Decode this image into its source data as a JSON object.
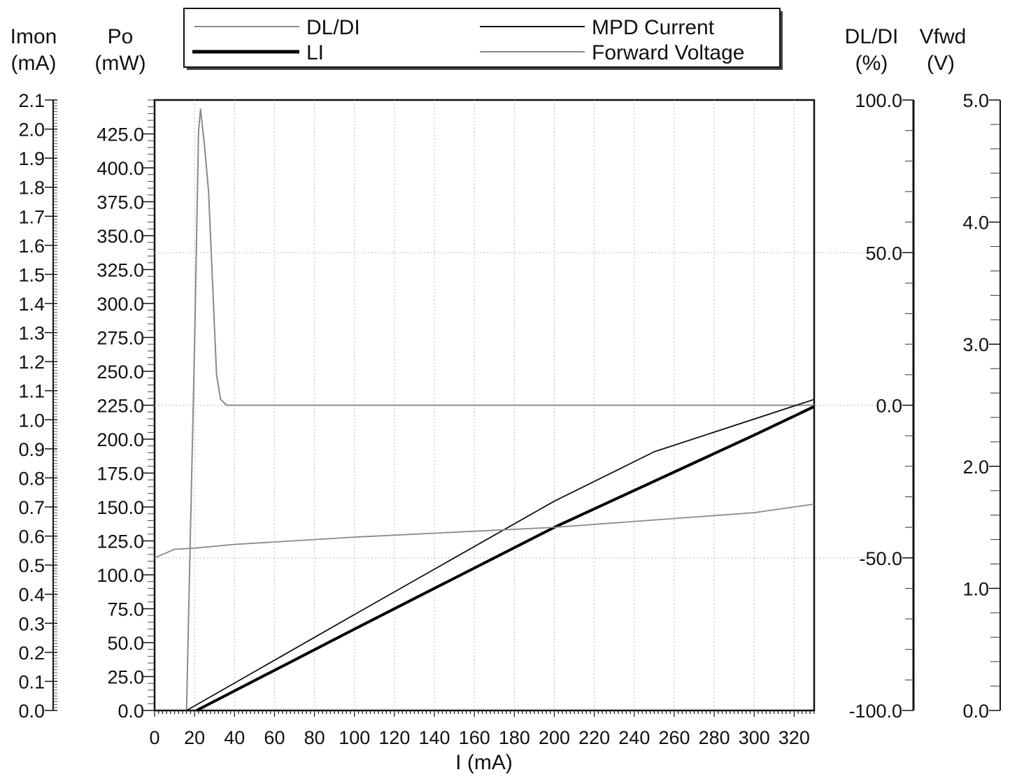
{
  "chart_data": {
    "type": "line",
    "x": {
      "label": "I (mA)",
      "range": [
        0,
        330
      ],
      "ticks": [
        0,
        20,
        40,
        60,
        80,
        100,
        120,
        140,
        160,
        180,
        200,
        220,
        240,
        260,
        280,
        300,
        320
      ],
      "tick_labels": [
        "0",
        "20",
        "40",
        "60",
        "80",
        "100",
        "120",
        "140",
        "160",
        "180",
        "200",
        "220",
        "240",
        "260",
        "280",
        "300",
        "320"
      ]
    },
    "axes": {
      "imon": {
        "title_line1": "Imon",
        "title_line2": "(mA)",
        "range": [
          0,
          2.1
        ],
        "ticks": [
          0,
          0.1,
          0.2,
          0.3,
          0.4,
          0.5,
          0.6,
          0.7,
          0.8,
          0.9,
          1.0,
          1.1,
          1.2,
          1.3,
          1.4,
          1.5,
          1.6,
          1.7,
          1.8,
          1.9,
          2.0,
          2.1
        ],
        "tick_labels": [
          "0.0",
          "0.1",
          "0.2",
          "0.3",
          "0.4",
          "0.5",
          "0.6",
          "0.7",
          "0.8",
          "0.9",
          "1.0",
          "1.1",
          "1.2",
          "1.3",
          "1.4",
          "1.5",
          "1.6",
          "1.7",
          "1.8",
          "1.9",
          "2.0",
          "2.1"
        ]
      },
      "po": {
        "title_line1": "Po",
        "title_line2": "(mW)",
        "range": [
          0,
          450
        ],
        "ticks": [
          0,
          25,
          50,
          75,
          100,
          125,
          150,
          175,
          200,
          225,
          250,
          275,
          300,
          325,
          350,
          375,
          400,
          425
        ],
        "tick_labels": [
          "0.0",
          "25.0",
          "50.0",
          "75.0",
          "100.0",
          "125.0",
          "150.0",
          "175.0",
          "200.0",
          "225.0",
          "250.0",
          "275.0",
          "300.0",
          "325.0",
          "350.0",
          "375.0",
          "400.0",
          "425.0"
        ]
      },
      "dldi": {
        "title_line1": "DL/DI",
        "title_line2": "(%)",
        "range": [
          -100,
          100
        ],
        "ticks": [
          -100,
          -50,
          0,
          50,
          100
        ],
        "tick_labels": [
          "-100.0",
          "-50.0",
          "0.0",
          "50.0",
          "100.0"
        ]
      },
      "vfwd": {
        "title_line1": "Vfwd",
        "title_line2": "(V)",
        "range": [
          0,
          5
        ],
        "ticks": [
          0,
          1,
          2,
          3,
          4,
          5
        ],
        "tick_labels": [
          "0.0",
          "1.0",
          "2.0",
          "3.0",
          "4.0",
          "5.0"
        ]
      }
    },
    "legend": [
      {
        "name": "DL/DI",
        "style": "gray-thin"
      },
      {
        "name": "MPD Current",
        "style": "black-thin"
      },
      {
        "name": "LI",
        "style": "black-thick"
      },
      {
        "name": "Forward Voltage",
        "style": "gray-thin"
      }
    ],
    "series": [
      {
        "name": "DL/DI",
        "axis": "dldi",
        "color": "#8a8a8a",
        "x": [
          16,
          18,
          20,
          22,
          23,
          25,
          27,
          29,
          31,
          33,
          36,
          40,
          60,
          100,
          140,
          180,
          220,
          260,
          300,
          330
        ],
        "y": [
          -100,
          -40,
          20,
          90,
          97,
          85,
          70,
          40,
          10,
          2,
          0,
          0,
          0,
          0,
          0,
          0,
          0,
          0,
          0,
          0
        ]
      },
      {
        "name": "MPD Current",
        "axis": "imon",
        "color": "#111111",
        "x": [
          16,
          100,
          200,
          250,
          330
        ],
        "y": [
          0.0,
          0.33,
          0.72,
          0.89,
          1.07
        ]
      },
      {
        "name": "LI",
        "axis": "po",
        "color": "#000000",
        "x": [
          21,
          100,
          200,
          300,
          330
        ],
        "y": [
          0,
          60,
          135,
          203,
          224
        ]
      },
      {
        "name": "Forward Voltage",
        "axis": "vfwd",
        "color": "#8a8a8a",
        "x": [
          0,
          10,
          20,
          40,
          100,
          200,
          300,
          330
        ],
        "y": [
          1.25,
          1.32,
          1.33,
          1.36,
          1.42,
          1.5,
          1.62,
          1.69
        ]
      }
    ],
    "grid": true,
    "legend_position": "top"
  }
}
